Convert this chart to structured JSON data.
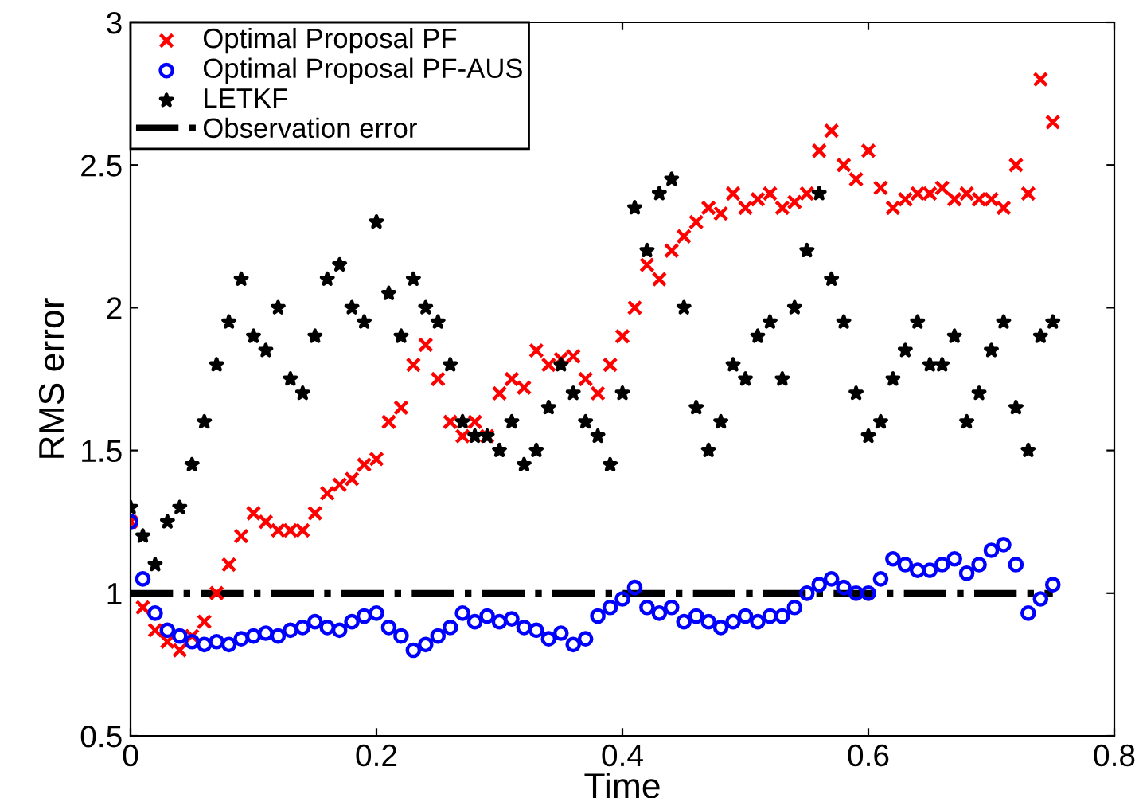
{
  "chart_data": {
    "type": "scatter",
    "xlabel": "Time",
    "ylabel": "RMS error",
    "xlim": [
      0,
      0.8
    ],
    "xticks": [
      0,
      0.2,
      0.4,
      0.6,
      0.8
    ],
    "ylim": [
      0.5,
      3
    ],
    "yticks": [
      0.5,
      1,
      1.5,
      2,
      2.5,
      3
    ],
    "grid": false,
    "legend": "top left",
    "x": [
      0,
      0.01,
      0.02,
      0.03,
      0.04,
      0.05,
      0.06,
      0.07,
      0.08,
      0.09,
      0.1,
      0.11,
      0.12,
      0.13,
      0.14,
      0.15,
      0.16,
      0.17,
      0.18,
      0.19,
      0.2,
      0.21,
      0.22,
      0.23,
      0.24,
      0.25,
      0.26,
      0.27,
      0.28,
      0.29,
      0.3,
      0.31,
      0.32,
      0.33,
      0.34,
      0.35,
      0.36,
      0.37,
      0.38,
      0.39,
      0.4,
      0.41,
      0.42,
      0.43,
      0.44,
      0.45,
      0.46,
      0.47,
      0.48,
      0.49,
      0.5,
      0.51,
      0.52,
      0.53,
      0.54,
      0.55,
      0.56,
      0.57,
      0.58,
      0.59,
      0.6,
      0.61,
      0.62,
      0.63,
      0.64,
      0.65,
      0.66,
      0.67,
      0.68,
      0.69,
      0.7,
      0.71,
      0.72,
      0.73,
      0.74,
      0.75
    ],
    "series": [
      {
        "name": "Optimal Proposal PF",
        "color": "#ff0000",
        "marker": "cross",
        "values": [
          1.25,
          0.95,
          0.87,
          0.83,
          0.8,
          0.85,
          0.9,
          1.0,
          1.1,
          1.2,
          1.28,
          1.25,
          1.22,
          1.22,
          1.22,
          1.28,
          1.35,
          1.38,
          1.4,
          1.45,
          1.47,
          1.6,
          1.65,
          1.8,
          1.87,
          1.75,
          1.6,
          1.55,
          1.6,
          1.55,
          1.7,
          1.75,
          1.72,
          1.85,
          1.8,
          1.82,
          1.83,
          1.75,
          1.7,
          1.8,
          1.9,
          2.0,
          2.15,
          2.1,
          2.2,
          2.25,
          2.3,
          2.35,
          2.33,
          2.4,
          2.35,
          2.38,
          2.4,
          2.35,
          2.37,
          2.4,
          2.55,
          2.62,
          2.5,
          2.45,
          2.55,
          2.42,
          2.35,
          2.38,
          2.4,
          2.4,
          2.42,
          2.38,
          2.4,
          2.38,
          2.38,
          2.35,
          2.5,
          2.4,
          2.8,
          2.65
        ]
      },
      {
        "name": "Optimal Proposal PF-AUS",
        "color": "#0000ff",
        "marker": "circle",
        "values": [
          1.25,
          1.05,
          0.93,
          0.87,
          0.85,
          0.83,
          0.82,
          0.83,
          0.82,
          0.84,
          0.85,
          0.86,
          0.85,
          0.87,
          0.88,
          0.9,
          0.88,
          0.87,
          0.9,
          0.92,
          0.93,
          0.88,
          0.85,
          0.8,
          0.82,
          0.85,
          0.88,
          0.93,
          0.9,
          0.92,
          0.9,
          0.91,
          0.88,
          0.87,
          0.84,
          0.86,
          0.82,
          0.84,
          0.92,
          0.95,
          0.98,
          1.02,
          0.95,
          0.93,
          0.95,
          0.9,
          0.92,
          0.9,
          0.88,
          0.9,
          0.92,
          0.9,
          0.92,
          0.92,
          0.95,
          1.0,
          1.03,
          1.05,
          1.02,
          1.0,
          1.0,
          1.05,
          1.12,
          1.1,
          1.08,
          1.08,
          1.1,
          1.12,
          1.07,
          1.1,
          1.15,
          1.17,
          1.1,
          0.93,
          0.98,
          1.03
        ]
      },
      {
        "name": "LETKF",
        "color": "#000000",
        "marker": "star",
        "values": [
          1.3,
          1.2,
          1.1,
          1.25,
          1.3,
          1.45,
          1.6,
          1.8,
          1.95,
          2.1,
          1.9,
          1.85,
          2.0,
          1.75,
          1.7,
          1.9,
          2.1,
          2.15,
          2.0,
          1.95,
          2.3,
          2.05,
          1.9,
          2.1,
          2.0,
          1.95,
          1.8,
          1.6,
          1.55,
          1.55,
          1.5,
          1.6,
          1.45,
          1.5,
          1.65,
          1.8,
          1.7,
          1.6,
          1.55,
          1.45,
          1.7,
          2.35,
          2.2,
          2.4,
          2.45,
          2.0,
          1.65,
          1.5,
          1.6,
          1.8,
          1.75,
          1.9,
          1.95,
          1.75,
          2.0,
          2.2,
          2.4,
          2.1,
          1.95,
          1.7,
          1.55,
          1.6,
          1.75,
          1.85,
          1.95,
          1.8,
          1.8,
          1.9,
          1.6,
          1.7,
          1.85,
          1.95,
          1.65,
          1.5,
          1.9,
          1.95
        ]
      },
      {
        "name": "Observation error",
        "type": "line",
        "color": "#000000",
        "line_style": "dashdot",
        "x": [
          0,
          0.75
        ],
        "values": [
          1,
          1
        ]
      }
    ]
  }
}
